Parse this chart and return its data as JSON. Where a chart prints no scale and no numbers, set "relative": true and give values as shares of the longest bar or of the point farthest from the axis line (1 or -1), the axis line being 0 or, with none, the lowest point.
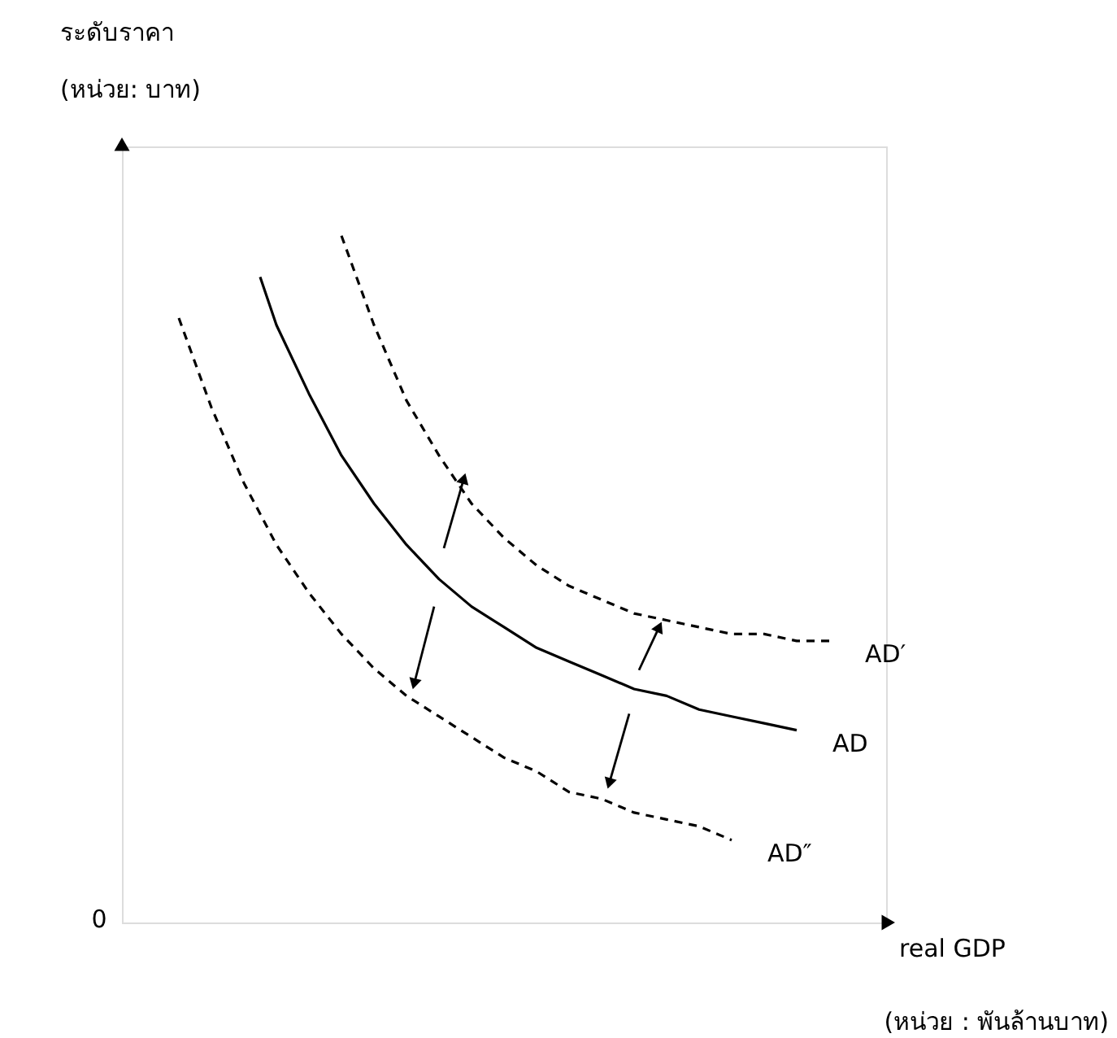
{
  "chart_data": {
    "type": "line",
    "relative": true,
    "xlabel": "real GDP\n(หน่วย : พันล้านบาท)",
    "annotations": [
      "ระดับราคา",
      "(หน่วย: บาท)",
      "0"
    ],
    "categories": [
      null,
      null,
      null,
      null,
      null,
      null,
      null,
      null,
      null,
      null,
      null,
      null,
      null,
      null,
      null,
      null,
      null,
      null,
      null,
      null,
      null,
      null,
      null,
      null,
      null,
      null,
      null,
      null,
      null,
      null,
      null,
      null,
      null,
      null,
      null,
      null,
      null,
      null,
      null,
      null,
      null
    ],
    "series": [
      {
        "name": "AD′",
        "color": "#000000",
        "line_style": "dashed",
        "values": [
          null,
          null,
          null,
          null,
          null,
          null,
          null,
          null,
          null,
          null,
          1.0,
          null,
          0.87,
          null,
          0.76,
          null,
          0.68,
          null,
          0.61,
          null,
          0.56,
          null,
          0.52,
          null,
          0.49,
          null,
          0.47,
          null,
          0.45,
          null,
          0.44,
          null,
          0.43,
          null,
          0.42,
          null,
          0.42,
          null,
          0.41,
          null,
          0.41
        ]
      },
      {
        "name": "AD",
        "color": "#000000",
        "line_style": "solid",
        "values": [
          null,
          null,
          null,
          null,
          null,
          0.94,
          0.87,
          null,
          0.77,
          null,
          0.68,
          null,
          0.61,
          null,
          0.55,
          null,
          0.5,
          null,
          0.46,
          null,
          0.43,
          null,
          0.4,
          null,
          0.38,
          null,
          0.36,
          null,
          0.34,
          null,
          0.33,
          null,
          0.31,
          null,
          0.3,
          null,
          0.29,
          null,
          0.28,
          null,
          null
        ]
      },
      {
        "name": "AD″",
        "color": "#000000",
        "line_style": "dashed",
        "values": [
          0.88,
          null,
          0.75,
          null,
          0.64,
          null,
          0.55,
          null,
          0.48,
          null,
          0.42,
          null,
          0.37,
          null,
          0.33,
          null,
          0.3,
          null,
          0.27,
          null,
          0.24,
          null,
          0.22,
          null,
          0.19,
          null,
          0.18,
          null,
          0.16,
          null,
          0.15,
          null,
          0.14,
          null,
          0.12,
          null,
          null,
          null,
          null,
          null,
          null
        ]
      }
    ]
  }
}
